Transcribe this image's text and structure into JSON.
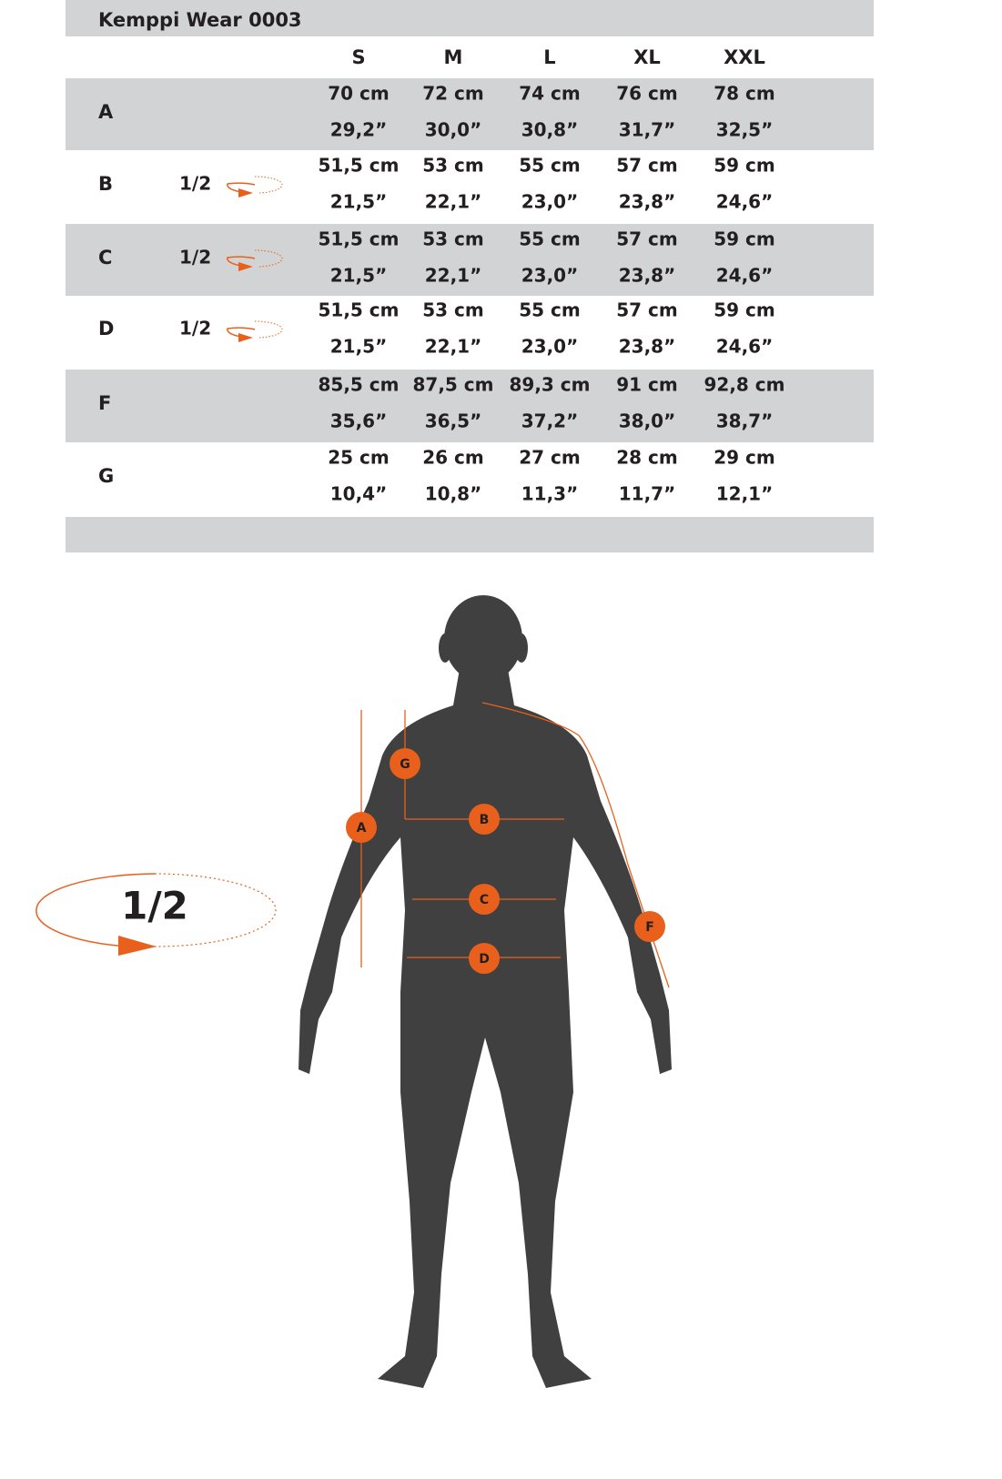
{
  "title": "Kemppi Wear 0003",
  "table": {
    "columns": [
      "S",
      "M",
      "L",
      "XL",
      "XXL"
    ],
    "rows": [
      {
        "label": "A",
        "cm": [
          "70 cm",
          "72 cm",
          "74 cm",
          "76 cm",
          "78 cm"
        ],
        "inch": [
          "29,2”",
          "30,0”",
          "30,8”",
          "31,7”",
          "32,5”"
        ]
      },
      {
        "label": "B",
        "note": "1/2",
        "cm": [
          "51,5 cm",
          "53 cm",
          "55 cm",
          "57 cm",
          "59 cm"
        ],
        "inch": [
          "21,5”",
          "22,1”",
          "23,0”",
          "23,8”",
          "24,6”"
        ]
      },
      {
        "label": "C",
        "note": "1/2",
        "cm": [
          "51,5 cm",
          "53 cm",
          "55 cm",
          "57 cm",
          "59 cm"
        ],
        "inch": [
          "21,5”",
          "22,1”",
          "23,0”",
          "23,8”",
          "24,6”"
        ]
      },
      {
        "label": "D",
        "note": "1/2",
        "cm": [
          "51,5 cm",
          "53 cm",
          "55 cm",
          "57 cm",
          "59 cm"
        ],
        "inch": [
          "21,5”",
          "22,1”",
          "23,0”",
          "23,8”",
          "24,6”"
        ]
      },
      {
        "label": "F",
        "cm": [
          "85,5 cm",
          "87,5 cm",
          "89,3 cm",
          "91 cm",
          "92,8 cm"
        ],
        "inch": [
          "35,6”",
          "36,5”",
          "37,2”",
          "38,0”",
          "38,7”"
        ]
      },
      {
        "label": "G",
        "cm": [
          "25 cm",
          "26 cm",
          "27 cm",
          "28 cm",
          "29 cm"
        ],
        "inch": [
          "10,4”",
          "10,8”",
          "11,3”",
          "11,7”",
          "12,1”"
        ]
      }
    ]
  },
  "diagram": {
    "half_label": "1/2",
    "markers": [
      "G",
      "A",
      "B",
      "C",
      "D",
      "F"
    ]
  }
}
